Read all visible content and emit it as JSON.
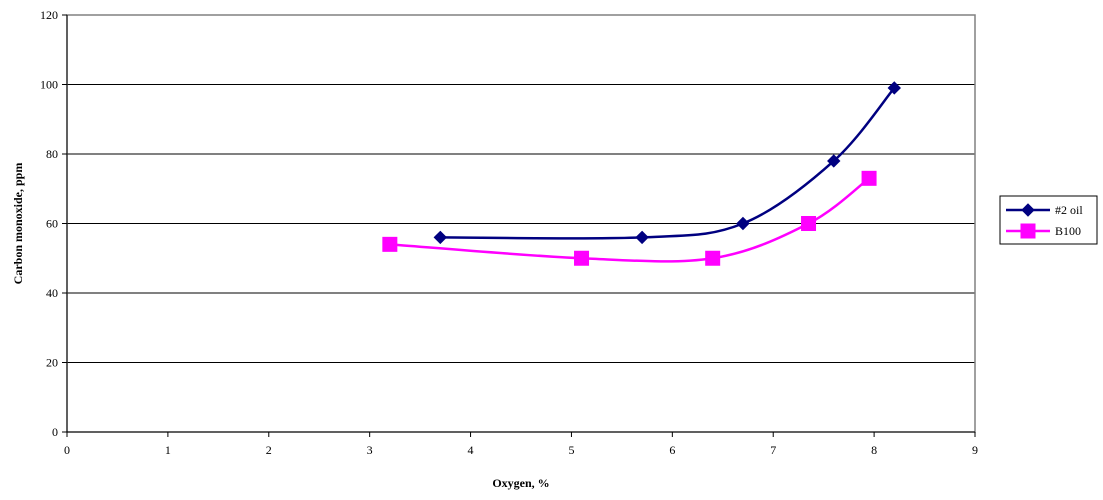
{
  "chart_data": {
    "type": "line",
    "xlabel": "Oxygen, %",
    "ylabel": "Carbon monoxide, ppm",
    "xlim": [
      0,
      9
    ],
    "ylim": [
      0,
      120
    ],
    "x_ticks": [
      0,
      1,
      2,
      3,
      4,
      5,
      6,
      7,
      8,
      9
    ],
    "y_ticks": [
      0,
      20,
      40,
      60,
      80,
      100,
      120
    ],
    "grid": "horizontal",
    "smooth": true,
    "legend_position": "right",
    "series": [
      {
        "name": "#2 oil",
        "color": "#000080",
        "marker": "diamond",
        "x": [
          3.7,
          5.7,
          6.7,
          7.6,
          8.2
        ],
        "y": [
          56,
          56,
          60,
          78,
          99
        ]
      },
      {
        "name": "B100",
        "color": "#FF00FF",
        "marker": "square",
        "x": [
          3.2,
          5.1,
          6.4,
          7.35,
          7.95
        ],
        "y": [
          54,
          50,
          50,
          60,
          73
        ]
      }
    ]
  }
}
